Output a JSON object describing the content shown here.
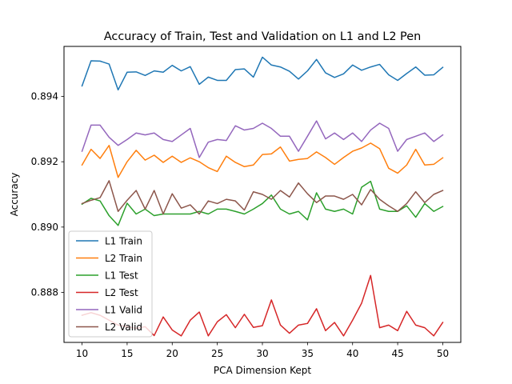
{
  "chart_data": {
    "type": "line",
    "title": "Accuracy of Train, Test and Validation on L1 and L2 Pen",
    "xlabel": "PCA Dimension Kept",
    "ylabel": "Accuracy",
    "xlim": [
      8.0,
      52.0
    ],
    "ylim": [
      0.88647,
      0.89553
    ],
    "x_ticks": [
      10,
      15,
      20,
      25,
      30,
      35,
      40,
      45,
      50
    ],
    "x_tick_labels": [
      "10",
      "15",
      "20",
      "25",
      "30",
      "35",
      "40",
      "45",
      "50"
    ],
    "y_ticks": [
      0.888,
      0.89,
      0.892,
      0.894
    ],
    "y_tick_labels": [
      "0.888",
      "0.890",
      "0.892",
      "0.894"
    ],
    "grid": false,
    "legend_position": "lower-left",
    "x": [
      10,
      11,
      12,
      13,
      14,
      15,
      16,
      17,
      18,
      19,
      20,
      21,
      22,
      23,
      24,
      25,
      26,
      27,
      28,
      29,
      30,
      31,
      32,
      33,
      34,
      35,
      36,
      37,
      38,
      39,
      40,
      41,
      42,
      43,
      44,
      45,
      46,
      47,
      48,
      49,
      50
    ],
    "series": [
      {
        "name": "L1 Train",
        "color": "#1f77b4",
        "values": [
          0.89432,
          0.89509,
          0.89508,
          0.89499,
          0.8942,
          0.89474,
          0.89475,
          0.89464,
          0.89478,
          0.89474,
          0.89495,
          0.89478,
          0.89491,
          0.89437,
          0.89459,
          0.89449,
          0.89449,
          0.89482,
          0.89484,
          0.89459,
          0.8952,
          0.89496,
          0.8949,
          0.89477,
          0.89453,
          0.89478,
          0.89513,
          0.89472,
          0.89458,
          0.89469,
          0.89496,
          0.8948,
          0.8949,
          0.89498,
          0.89466,
          0.89449,
          0.8947,
          0.8949,
          0.89465,
          0.89466,
          0.89489
        ]
      },
      {
        "name": "L2 Train",
        "color": "#ff7f0e",
        "values": [
          0.8919,
          0.89238,
          0.8921,
          0.8925,
          0.89152,
          0.892,
          0.89235,
          0.89205,
          0.8922,
          0.89198,
          0.89217,
          0.89198,
          0.89212,
          0.892,
          0.89182,
          0.8917,
          0.89217,
          0.89198,
          0.89185,
          0.8919,
          0.89222,
          0.89224,
          0.89245,
          0.89202,
          0.89207,
          0.8921,
          0.8923,
          0.89213,
          0.89192,
          0.89213,
          0.89232,
          0.89242,
          0.89257,
          0.8924,
          0.8918,
          0.89165,
          0.8919,
          0.89238,
          0.8919,
          0.89192,
          0.89212
        ]
      },
      {
        "name": "L1 Test",
        "color": "#2ca02c",
        "values": [
          0.8907,
          0.89088,
          0.8908,
          0.89035,
          0.89005,
          0.89073,
          0.8904,
          0.89055,
          0.89035,
          0.8904,
          0.8904,
          0.8904,
          0.8904,
          0.89048,
          0.8904,
          0.89055,
          0.89055,
          0.89048,
          0.8904,
          0.89055,
          0.89072,
          0.89098,
          0.89055,
          0.8904,
          0.89048,
          0.89022,
          0.89105,
          0.89055,
          0.89048,
          0.89055,
          0.8904,
          0.89122,
          0.8914,
          0.89055,
          0.89048,
          0.89048,
          0.89065,
          0.8903,
          0.89072,
          0.89048,
          0.89063
        ]
      },
      {
        "name": "L2 Test",
        "color": "#d62728",
        "values": [
          0.8873,
          0.88738,
          0.8873,
          0.88715,
          0.887,
          0.88695,
          0.8869,
          0.88695,
          0.88668,
          0.88725,
          0.88685,
          0.88667,
          0.88715,
          0.8874,
          0.88667,
          0.8871,
          0.88732,
          0.88692,
          0.88733,
          0.88693,
          0.88698,
          0.88777,
          0.887,
          0.88675,
          0.887,
          0.88705,
          0.8875,
          0.88683,
          0.88708,
          0.88667,
          0.88715,
          0.88767,
          0.88852,
          0.88692,
          0.887,
          0.88683,
          0.88742,
          0.887,
          0.88692,
          0.88667,
          0.88708
        ]
      },
      {
        "name": "L1 Valid",
        "color": "#9467bd",
        "values": [
          0.89232,
          0.89312,
          0.89312,
          0.89275,
          0.8925,
          0.89268,
          0.89288,
          0.89282,
          0.89288,
          0.89268,
          0.89262,
          0.89282,
          0.89302,
          0.89213,
          0.8926,
          0.89268,
          0.89265,
          0.8931,
          0.89297,
          0.89302,
          0.89318,
          0.89302,
          0.89278,
          0.89278,
          0.89232,
          0.89278,
          0.89325,
          0.8927,
          0.89288,
          0.89268,
          0.89288,
          0.89262,
          0.89297,
          0.89318,
          0.89302,
          0.89232,
          0.89268,
          0.89278,
          0.89288,
          0.89262,
          0.89282
        ]
      },
      {
        "name": "L2 Valid",
        "color": "#8c564b",
        "values": [
          0.89072,
          0.89082,
          0.8909,
          0.89142,
          0.89048,
          0.89082,
          0.89112,
          0.89055,
          0.89112,
          0.8904,
          0.89102,
          0.89058,
          0.89068,
          0.8904,
          0.8908,
          0.89072,
          0.89085,
          0.8908,
          0.89052,
          0.89108,
          0.891,
          0.89085,
          0.89112,
          0.89092,
          0.89135,
          0.89102,
          0.89075,
          0.89095,
          0.89095,
          0.89085,
          0.891,
          0.89068,
          0.89115,
          0.89085,
          0.89065,
          0.89048,
          0.89072,
          0.89108,
          0.89075,
          0.891,
          0.89112
        ]
      }
    ]
  }
}
